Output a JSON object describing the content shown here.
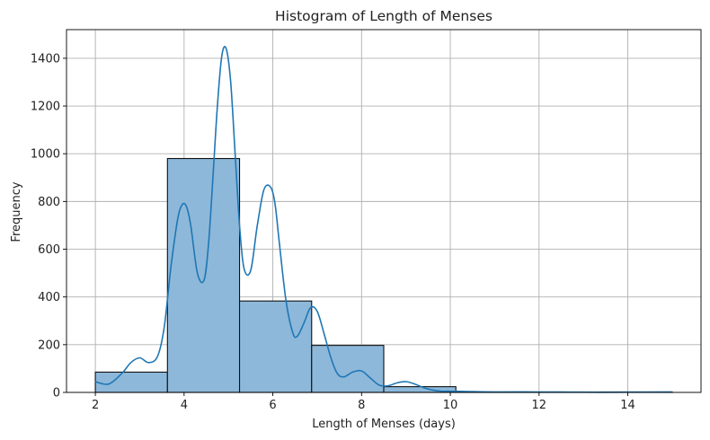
{
  "chart_data": {
    "type": "bar",
    "title": "Histogram of Length of Menses",
    "xlabel": "Length of Menses (days)",
    "ylabel": "Frequency",
    "xlim": [
      1.35,
      15.65
    ],
    "ylim": [
      0,
      1520
    ],
    "xticks": [
      2,
      4,
      6,
      8,
      10,
      12,
      14
    ],
    "yticks": [
      0,
      200,
      400,
      600,
      800,
      1000,
      1200,
      1400
    ],
    "grid": true,
    "colors": {
      "bar_fill": "#8db8da",
      "bar_edge": "#111111",
      "kde": "#1f77b4",
      "grid": "#b0b0b0"
    },
    "bins": [
      {
        "x0": 2.0,
        "x1": 3.625,
        "value": 85
      },
      {
        "x0": 3.625,
        "x1": 5.25,
        "value": 980
      },
      {
        "x0": 5.25,
        "x1": 6.875,
        "value": 383
      },
      {
        "x0": 6.875,
        "x1": 8.5,
        "value": 197
      },
      {
        "x0": 8.5,
        "x1": 10.125,
        "value": 24
      },
      {
        "x0": 10.125,
        "x1": 11.75,
        "value": 2
      },
      {
        "x0": 11.75,
        "x1": 13.375,
        "value": 1
      },
      {
        "x0": 13.375,
        "x1": 15.0,
        "value": 2
      }
    ],
    "kde": {
      "x": [
        2.0,
        2.3,
        2.6,
        2.8,
        3.0,
        3.2,
        3.4,
        3.55,
        3.7,
        3.85,
        3.95,
        4.05,
        4.15,
        4.3,
        4.45,
        4.55,
        4.65,
        4.75,
        4.85,
        4.95,
        5.05,
        5.15,
        5.25,
        5.35,
        5.5,
        5.65,
        5.8,
        5.95,
        6.05,
        6.15,
        6.3,
        6.45,
        6.55,
        6.7,
        6.85,
        7.0,
        7.15,
        7.3,
        7.45,
        7.6,
        7.8,
        8.0,
        8.2,
        8.4,
        8.6,
        8.8,
        9.0,
        9.2,
        9.4,
        9.6,
        9.8,
        10.0,
        10.3,
        10.6,
        11.0,
        12.0,
        13.0,
        14.0,
        15.0
      ],
      "y": [
        45,
        35,
        80,
        125,
        145,
        125,
        150,
        270,
        520,
        720,
        785,
        780,
        700,
        500,
        470,
        620,
        900,
        1200,
        1410,
        1440,
        1300,
        1000,
        700,
        520,
        510,
        700,
        850,
        860,
        790,
        620,
        380,
        250,
        235,
        290,
        355,
        340,
        250,
        150,
        80,
        65,
        85,
        90,
        60,
        30,
        28,
        40,
        45,
        35,
        20,
        10,
        5,
        5,
        4,
        3,
        2,
        2,
        1,
        1,
        2
      ]
    }
  }
}
